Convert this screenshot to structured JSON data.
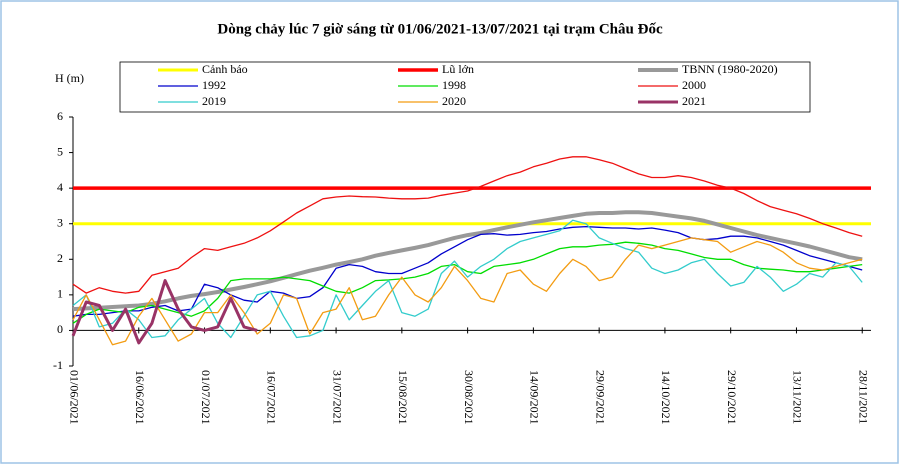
{
  "chart_data": {
    "type": "line",
    "title": "Dòng chảy lúc 7 giờ sáng từ 01/06/2021-13/07/2021 tại trạm Châu Đốc",
    "y_label": "H (m)",
    "x": [
      "01/06/2021",
      "04/06/2021",
      "07/06/2021",
      "10/06/2021",
      "13/06/2021",
      "16/06/2021",
      "19/06/2021",
      "22/06/2021",
      "25/06/2021",
      "28/06/2021",
      "01/07/2021",
      "04/07/2021",
      "07/07/2021",
      "10/07/2021",
      "13/07/2021",
      "16/07/2021",
      "19/07/2021",
      "22/07/2021",
      "25/07/2021",
      "28/07/2021",
      "31/07/2021",
      "03/08/2021",
      "06/08/2021",
      "09/08/2021",
      "12/08/2021",
      "15/08/2021",
      "18/08/2021",
      "21/08/2021",
      "24/08/2021",
      "27/08/2021",
      "30/08/2021",
      "02/09/2021",
      "05/09/2021",
      "08/09/2021",
      "11/09/2021",
      "14/09/2021",
      "17/09/2021",
      "20/09/2021",
      "23/09/2021",
      "26/09/2021",
      "29/09/2021",
      "02/10/2021",
      "05/10/2021",
      "08/10/2021",
      "11/10/2021",
      "14/10/2021",
      "17/10/2021",
      "20/10/2021",
      "23/10/2021",
      "26/10/2021",
      "29/10/2021",
      "01/11/2021",
      "04/11/2021",
      "07/11/2021",
      "10/11/2021",
      "13/11/2021",
      "16/11/2021",
      "19/11/2021",
      "22/11/2021",
      "25/11/2021",
      "28/11/2021"
    ],
    "xlim": [
      "01/06/2021",
      "30/11/2021"
    ],
    "xticks": [
      "01/06/2021",
      "16/06/2021",
      "01/07/2021",
      "16/07/2021",
      "31/07/2021",
      "15/08/2021",
      "30/08/2021",
      "14/09/2021",
      "29/09/2021",
      "14/10/2021",
      "29/10/2021",
      "13/11/2021",
      "28/11/2021"
    ],
    "ylim": [
      -1,
      6
    ],
    "yticks": [
      -1,
      0,
      1,
      2,
      3,
      4,
      5,
      6
    ],
    "series": [
      {
        "name": "Cảnh báo",
        "color": "#ffff00",
        "width": 3,
        "x": [
          "01/06/2021",
          "30/11/2021"
        ],
        "values": [
          3,
          3
        ]
      },
      {
        "name": "Lũ lớn",
        "color": "#ff0000",
        "width": 3.5,
        "x": [
          "01/06/2021",
          "30/11/2021"
        ],
        "values": [
          4,
          4
        ]
      },
      {
        "name": "TBNN (1980-2020)",
        "color": "#999999",
        "width": 4,
        "values": [
          0.6,
          0.62,
          0.64,
          0.66,
          0.68,
          0.7,
          0.75,
          0.82,
          0.9,
          0.97,
          1.02,
          1.08,
          1.15,
          1.22,
          1.3,
          1.38,
          1.48,
          1.58,
          1.68,
          1.76,
          1.85,
          1.92,
          2.0,
          2.1,
          2.18,
          2.25,
          2.32,
          2.4,
          2.5,
          2.6,
          2.68,
          2.74,
          2.82,
          2.9,
          2.97,
          3.04,
          3.1,
          3.16,
          3.22,
          3.28,
          3.3,
          3.3,
          3.32,
          3.32,
          3.3,
          3.25,
          3.2,
          3.15,
          3.08,
          2.98,
          2.88,
          2.78,
          2.68,
          2.6,
          2.52,
          2.44,
          2.36,
          2.26,
          2.16,
          2.06,
          2.0
        ]
      },
      {
        "name": "1992",
        "color": "#0000cc",
        "width": 1.3,
        "values": [
          0.4,
          0.45,
          0.45,
          0.5,
          0.55,
          0.55,
          0.65,
          0.7,
          0.55,
          0.6,
          1.3,
          1.2,
          1.0,
          0.85,
          0.8,
          1.1,
          1.05,
          0.9,
          0.95,
          1.2,
          1.75,
          1.85,
          1.8,
          1.65,
          1.6,
          1.6,
          1.75,
          1.9,
          2.15,
          2.35,
          2.55,
          2.7,
          2.72,
          2.68,
          2.7,
          2.75,
          2.78,
          2.85,
          2.9,
          2.92,
          2.9,
          2.88,
          2.88,
          2.85,
          2.88,
          2.82,
          2.75,
          2.6,
          2.55,
          2.58,
          2.65,
          2.65,
          2.6,
          2.5,
          2.4,
          2.25,
          2.1,
          2.0,
          1.9,
          1.8,
          1.7
        ]
      },
      {
        "name": "1998",
        "color": "#00dd00",
        "width": 1.3,
        "values": [
          0.2,
          0.45,
          0.6,
          0.55,
          0.5,
          0.65,
          0.7,
          0.6,
          0.5,
          0.4,
          0.55,
          0.9,
          1.4,
          1.45,
          1.45,
          1.45,
          1.5,
          1.45,
          1.4,
          1.25,
          1.1,
          1.05,
          1.2,
          1.4,
          1.42,
          1.45,
          1.5,
          1.6,
          1.8,
          1.85,
          1.65,
          1.6,
          1.8,
          1.85,
          1.9,
          2.0,
          2.15,
          2.3,
          2.35,
          2.35,
          2.4,
          2.42,
          2.48,
          2.45,
          2.4,
          2.3,
          2.25,
          2.15,
          2.05,
          2.0,
          2.0,
          1.85,
          1.75,
          1.72,
          1.7,
          1.65,
          1.65,
          1.7,
          1.75,
          1.8,
          1.85
        ]
      },
      {
        "name": "2000",
        "color": "#ee1111",
        "width": 1.3,
        "values": [
          1.3,
          1.05,
          1.2,
          1.1,
          1.05,
          1.1,
          1.55,
          1.65,
          1.75,
          2.05,
          2.3,
          2.25,
          2.35,
          2.45,
          2.6,
          2.8,
          3.05,
          3.3,
          3.5,
          3.7,
          3.75,
          3.78,
          3.76,
          3.75,
          3.72,
          3.7,
          3.7,
          3.72,
          3.8,
          3.86,
          3.92,
          4.05,
          4.2,
          4.35,
          4.45,
          4.6,
          4.7,
          4.82,
          4.88,
          4.88,
          4.8,
          4.7,
          4.55,
          4.4,
          4.3,
          4.3,
          4.35,
          4.3,
          4.2,
          4.08,
          4.0,
          3.85,
          3.65,
          3.48,
          3.38,
          3.28,
          3.15,
          3.0,
          2.88,
          2.75,
          2.65
        ]
      },
      {
        "name": "2019",
        "color": "#33cccc",
        "width": 1.3,
        "values": [
          0.7,
          1.0,
          0.1,
          0.2,
          0.6,
          0.3,
          -0.2,
          -0.15,
          0.3,
          0.6,
          0.9,
          0.2,
          -0.2,
          0.4,
          1.0,
          1.1,
          0.4,
          -0.2,
          -0.15,
          0.0,
          1.0,
          0.3,
          0.7,
          1.1,
          1.4,
          0.5,
          0.4,
          0.6,
          1.6,
          1.95,
          1.5,
          1.8,
          2.0,
          2.3,
          2.5,
          2.6,
          2.7,
          2.8,
          3.1,
          3.0,
          2.6,
          2.45,
          2.3,
          2.2,
          1.75,
          1.6,
          1.7,
          1.9,
          2.0,
          1.6,
          1.25,
          1.35,
          1.8,
          1.5,
          1.1,
          1.3,
          1.6,
          1.5,
          1.9,
          1.8,
          1.35
        ]
      },
      {
        "name": "2020",
        "color": "#f39c12",
        "width": 1.3,
        "values": [
          0.3,
          1.0,
          0.3,
          -0.4,
          -0.3,
          0.4,
          0.9,
          0.3,
          -0.3,
          -0.1,
          0.5,
          0.5,
          1.0,
          0.5,
          -0.1,
          0.2,
          1.0,
          0.9,
          -0.1,
          0.5,
          0.6,
          1.2,
          0.3,
          0.4,
          1.0,
          1.5,
          1.0,
          0.8,
          1.2,
          1.8,
          1.4,
          0.9,
          0.8,
          1.6,
          1.7,
          1.3,
          1.1,
          1.6,
          2.0,
          1.8,
          1.4,
          1.5,
          2.0,
          2.4,
          2.3,
          2.4,
          2.5,
          2.6,
          2.55,
          2.5,
          2.2,
          2.35,
          2.5,
          2.4,
          2.2,
          1.9,
          1.75,
          1.7,
          1.8,
          1.9,
          2.0
        ]
      },
      {
        "name": "2021",
        "color": "#993366",
        "width": 3,
        "values": [
          -0.15,
          0.8,
          0.7,
          0.0,
          0.6,
          -0.35,
          0.2,
          1.4,
          0.6,
          0.1,
          0.0,
          0.1,
          0.9,
          0.1,
          0.0,
          null,
          null,
          null,
          null,
          null,
          null,
          null,
          null,
          null,
          null,
          null,
          null,
          null,
          null,
          null,
          null,
          null,
          null,
          null,
          null,
          null,
          null,
          null,
          null,
          null,
          null,
          null,
          null,
          null,
          null,
          null,
          null,
          null,
          null,
          null,
          null,
          null,
          null,
          null,
          null,
          null,
          null,
          null,
          null,
          null,
          null
        ]
      }
    ]
  }
}
